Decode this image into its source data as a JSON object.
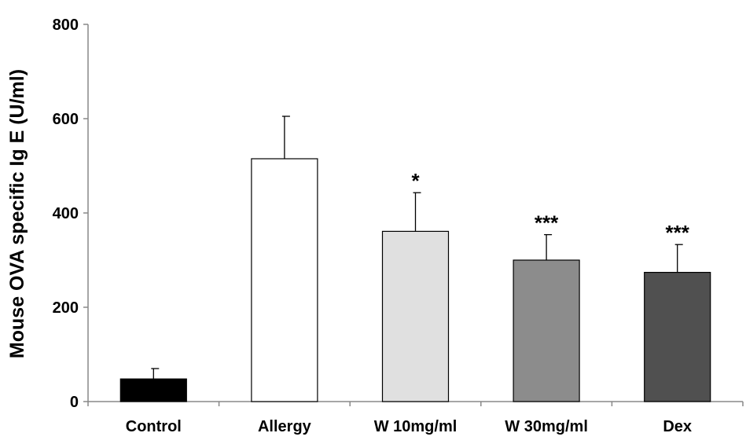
{
  "chart_data": {
    "type": "bar",
    "title": "",
    "xlabel": "",
    "ylabel": "Mouse OVA specific Ig E (U/ml)",
    "ylim": [
      0,
      800
    ],
    "yticks": [
      0,
      200,
      400,
      600,
      800
    ],
    "grid": false,
    "categories": [
      "Control",
      "Allergy",
      "W 10mg/ml",
      "W 30mg/ml",
      "Dex"
    ],
    "values": [
      48,
      515,
      361,
      300,
      274
    ],
    "errors": [
      22,
      90,
      82,
      54,
      59
    ],
    "significance": [
      "",
      "",
      "*",
      "***",
      "***"
    ],
    "colors": [
      "#000000",
      "#ffffff",
      "#e0e0e0",
      "#8c8c8c",
      "#505050"
    ]
  }
}
